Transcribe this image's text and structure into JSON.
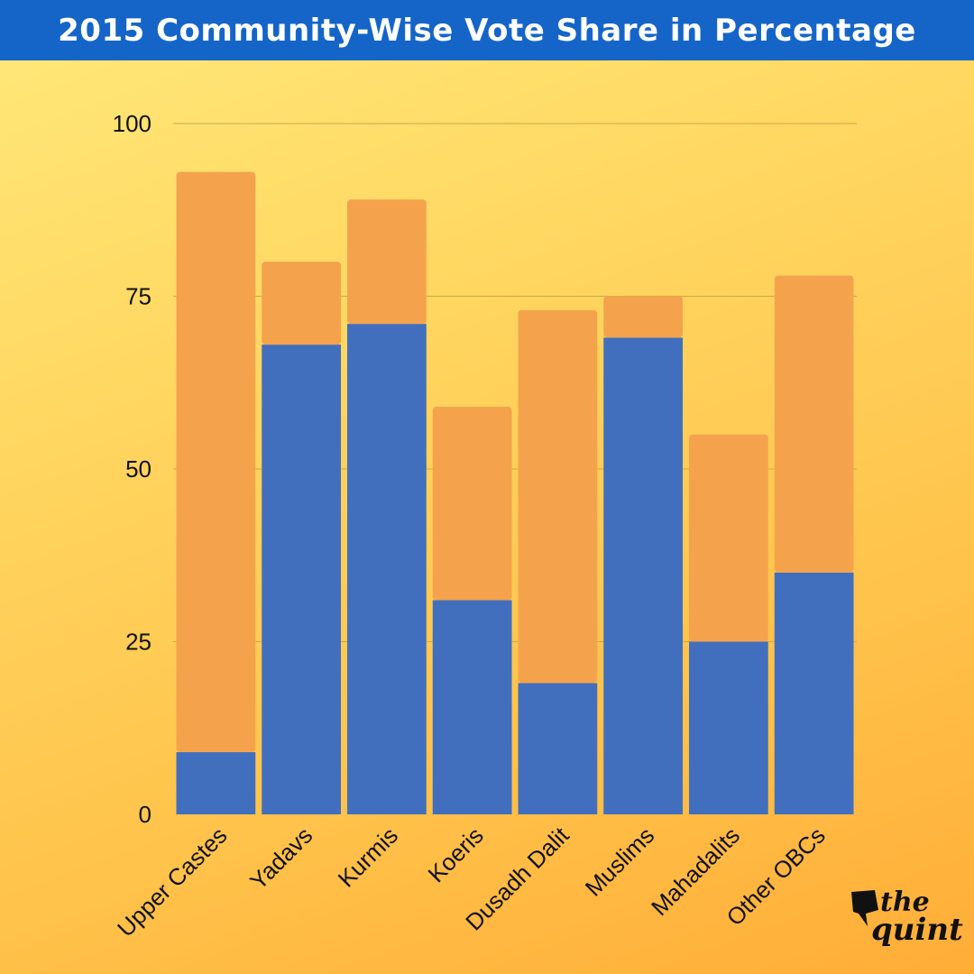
{
  "header": {
    "title": "2015 Community-Wise Vote Share in Percentage"
  },
  "colors": {
    "bar_blue": "#426fbd",
    "bar_orange": "#f4a34c",
    "title_bg": "#1565c8",
    "grid": "#c9a94a"
  },
  "chart_data": {
    "type": "bar",
    "stacked": true,
    "title": "2015 Community-Wise Vote Share in Percentage",
    "xlabel": "",
    "ylabel": "",
    "ylim": [
      0,
      100
    ],
    "yticks": [
      0,
      25,
      50,
      75,
      100
    ],
    "grid": true,
    "legend": "none",
    "categories": [
      "Upper Castes",
      "Yadavs",
      "Kurmis",
      "Koeris",
      "Dusadh Dalit",
      "Muslims",
      "Mahadalits",
      "Other OBCs"
    ],
    "series": [
      {
        "color": "#426fbd",
        "values": [
          9,
          68,
          71,
          31,
          19,
          69,
          25,
          35
        ]
      },
      {
        "color": "#f4a34c",
        "values": [
          84,
          12,
          18,
          28,
          54,
          6,
          30,
          43
        ]
      }
    ]
  },
  "brand": {
    "logo_line1": "the",
    "logo_line2": "quint",
    "icon": "quint-speech-bubble-icon"
  }
}
